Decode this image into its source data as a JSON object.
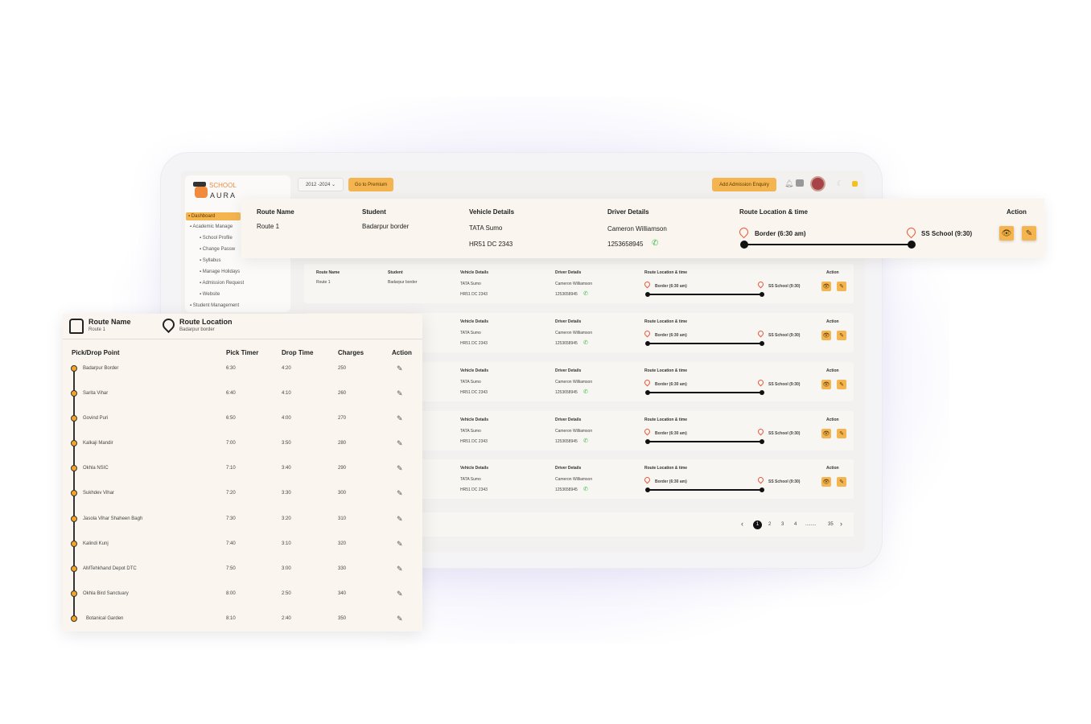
{
  "app": {
    "logo_line1": "SCHOOL",
    "logo_line2": "AURA"
  },
  "topbar": {
    "year": "2012 -2024",
    "premium": "Go to Premium",
    "enquiry": "Add Admission Enquiry"
  },
  "sidebar": {
    "items": [
      {
        "label": "Dashboard",
        "active": true,
        "icon": "dashboard-icon"
      },
      {
        "label": "Academic Manage",
        "icon": "academic-icon"
      },
      {
        "label": "School Profile",
        "sub": true,
        "icon": "profile-icon"
      },
      {
        "label": "Change Passw",
        "sub": true,
        "icon": "key-icon"
      },
      {
        "label": "Syllabus",
        "sub": true,
        "icon": "book-icon"
      },
      {
        "label": "Manage Holidays",
        "sub": true,
        "icon": "calendar-icon"
      },
      {
        "label": "Admission Request",
        "sub": true,
        "icon": "request-icon"
      },
      {
        "label": "Website",
        "sub": true,
        "icon": "globe-icon"
      },
      {
        "label": "Student Management",
        "icon": "student-icon"
      }
    ]
  },
  "headers": {
    "route_name": "Route Name",
    "student": "Student",
    "vehicle": "Vehicle Details",
    "driver": "Driver Details",
    "route_loc": "Route Location & time",
    "action": "Action"
  },
  "route": {
    "name": "Route 1",
    "student": "Badarpur border",
    "vehicle": "TATA Sumo",
    "plate": "HR51 DC 2343",
    "driver": "Cameron Williamson",
    "phone": "1253658945",
    "start": "Border (6:30 am)",
    "end": "SS School (9:30)"
  },
  "pagination": {
    "pages": [
      "1",
      "2",
      "3",
      "4",
      "........",
      "35"
    ],
    "current": "1"
  },
  "detail": {
    "route_name_label": "Route Name",
    "route_name": "Route 1",
    "route_loc_label": "Route Location",
    "route_loc": "Badarpur border",
    "columns": [
      "Pick/Drop Point",
      "Pick Timer",
      "Drop Time",
      "Charges",
      "Action"
    ],
    "rows": [
      [
        "Badarpur Border",
        "6:30",
        "4:20",
        "250"
      ],
      [
        "Sarita Vihar",
        "6:40",
        "4:10",
        "260"
      ],
      [
        "Govind Puri",
        "6:50",
        "4:00",
        "270"
      ],
      [
        "Kalkaji Mandir",
        "7:00",
        "3:50",
        "280"
      ],
      [
        "Okhla NSIC",
        "7:10",
        "3:40",
        "290"
      ],
      [
        "Sukhdev Vihar",
        "7:20",
        "3:30",
        "300"
      ],
      [
        "Jasola Vihar Shaheen Bagh",
        "7:30",
        "3:20",
        "310"
      ],
      [
        "Kalindi Kunj",
        "7:40",
        "3:10",
        "320"
      ],
      [
        "AMTehkhand Depot DTC",
        "7:50",
        "3:00",
        "330"
      ],
      [
        "Okhla Bird Sanctuary",
        "8:00",
        "2:50",
        "340"
      ],
      [
        "Botanical Garden",
        "8:10",
        "2:40",
        "350"
      ]
    ]
  },
  "colors": {
    "accent": "#f4b550",
    "pin": "#e8583a",
    "timeline_dot": "#f4a623",
    "phone": "#3cbf4a"
  }
}
